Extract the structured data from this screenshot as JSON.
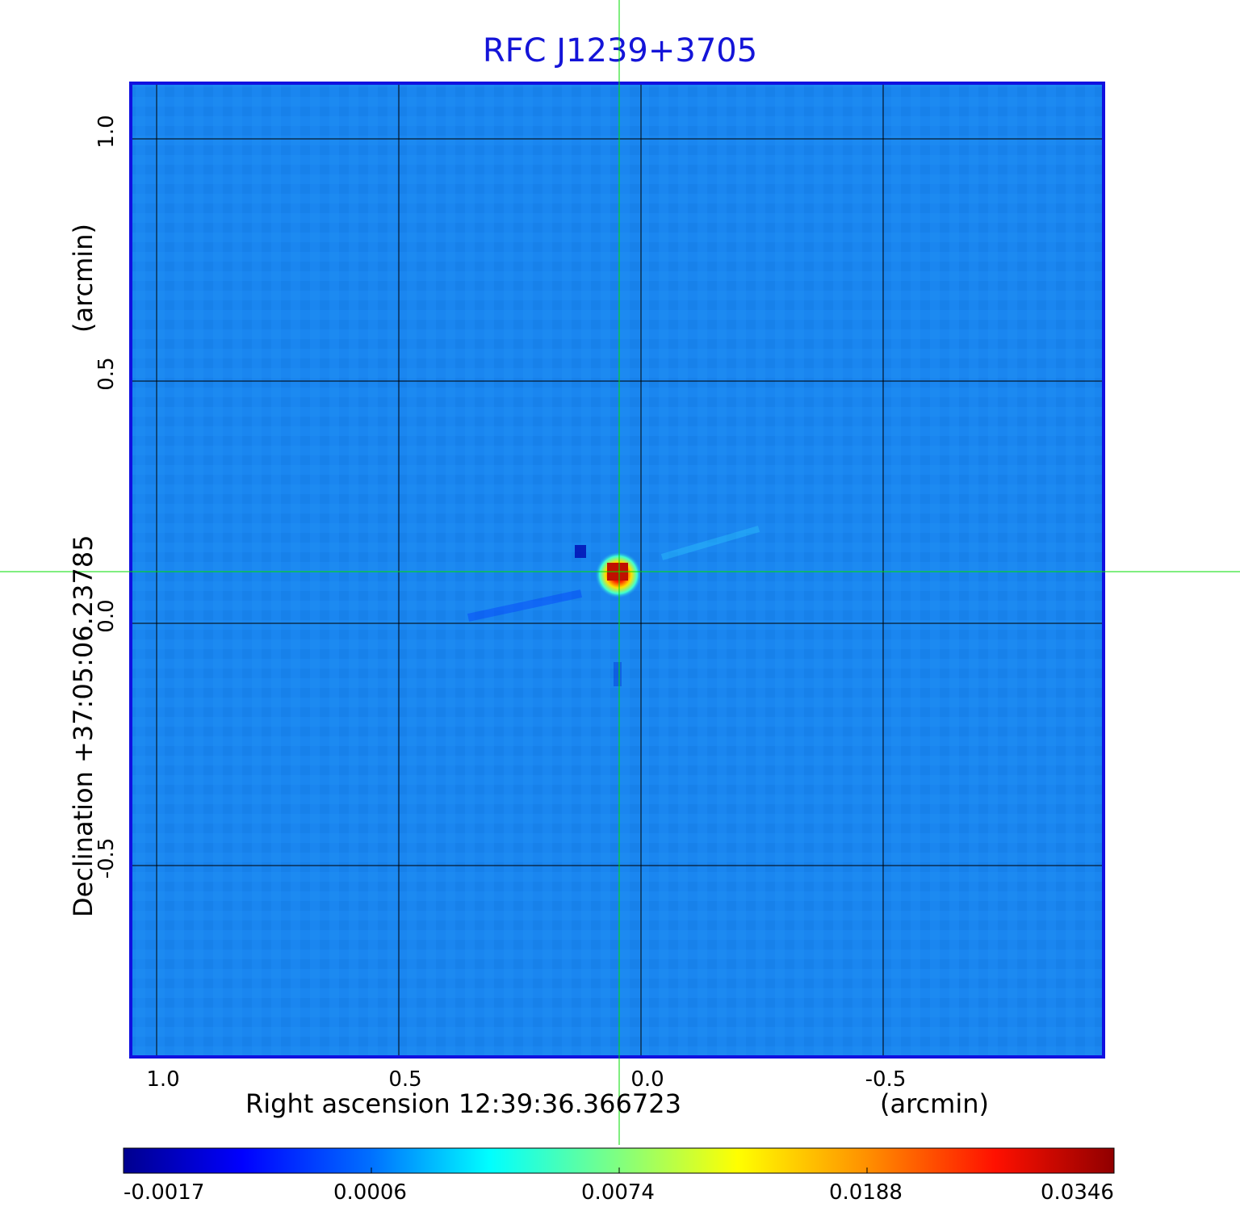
{
  "title": "RFC J1239+3705",
  "y_axis": {
    "label_main": "Declination  +37:05:06.23785",
    "label_unit": "(arcmin)",
    "ticks": [
      "1.0",
      "0.5",
      "0.0",
      "-0.5"
    ]
  },
  "x_axis": {
    "label_main": "Right ascension  12:39:36.366723",
    "label_unit": "(arcmin)",
    "ticks": [
      "1.0",
      "0.5",
      "0.0",
      "-0.5"
    ]
  },
  "colorbar": {
    "ticks": [
      "-0.0017",
      "0.0006",
      "0.0074",
      "0.0188",
      "0.0346"
    ],
    "colors": [
      "#00008f",
      "#0000ff",
      "#0080ff",
      "#00ffff",
      "#80ff80",
      "#ffff00",
      "#ff8000",
      "#ff0000",
      "#800000"
    ]
  },
  "colors": {
    "title": "#1414d8",
    "frame": "#1010e0",
    "background_map": "#1a86f0",
    "crosshair": "#00dd00",
    "grid": "#000000"
  }
}
